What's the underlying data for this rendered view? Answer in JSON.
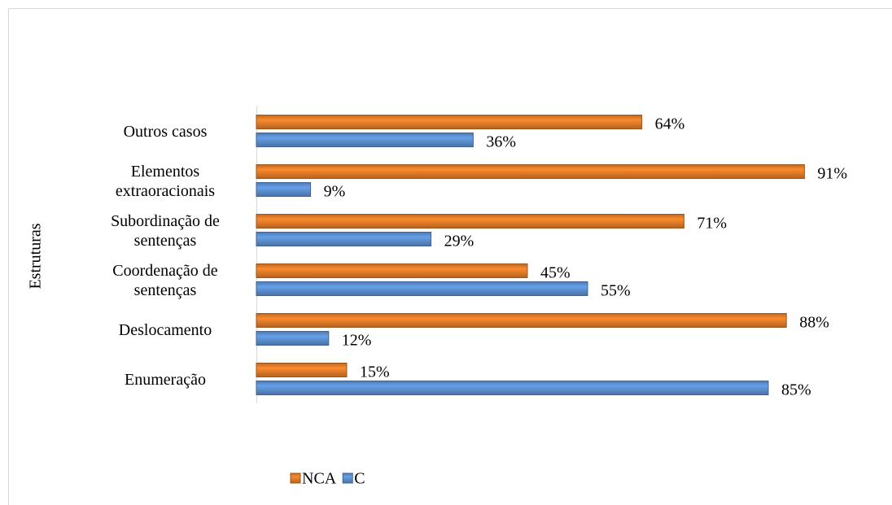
{
  "chart_data": {
    "type": "barh",
    "categories": [
      "Outros casos",
      "Elementos extraoracionais",
      "Subordinação de sentenças",
      "Coordenação de sentenças",
      "Deslocamento",
      "Enumeração"
    ],
    "y_label": "Estruturas",
    "series": [
      {
        "name": "NCA",
        "color": "#e07b28",
        "values": [
          64,
          91,
          71,
          45,
          88,
          15
        ],
        "value_labels": [
          "64%",
          "91%",
          "71%",
          "45%",
          "88%",
          "15%"
        ]
      },
      {
        "name": "C",
        "color": "#5b8fd0",
        "values": [
          36,
          9,
          29,
          55,
          12,
          85
        ],
        "value_labels": [
          "36%",
          "9%",
          "29%",
          "55%",
          "12%",
          "85%"
        ]
      }
    ],
    "xlim": [
      0,
      100
    ],
    "legend": "bottom"
  }
}
